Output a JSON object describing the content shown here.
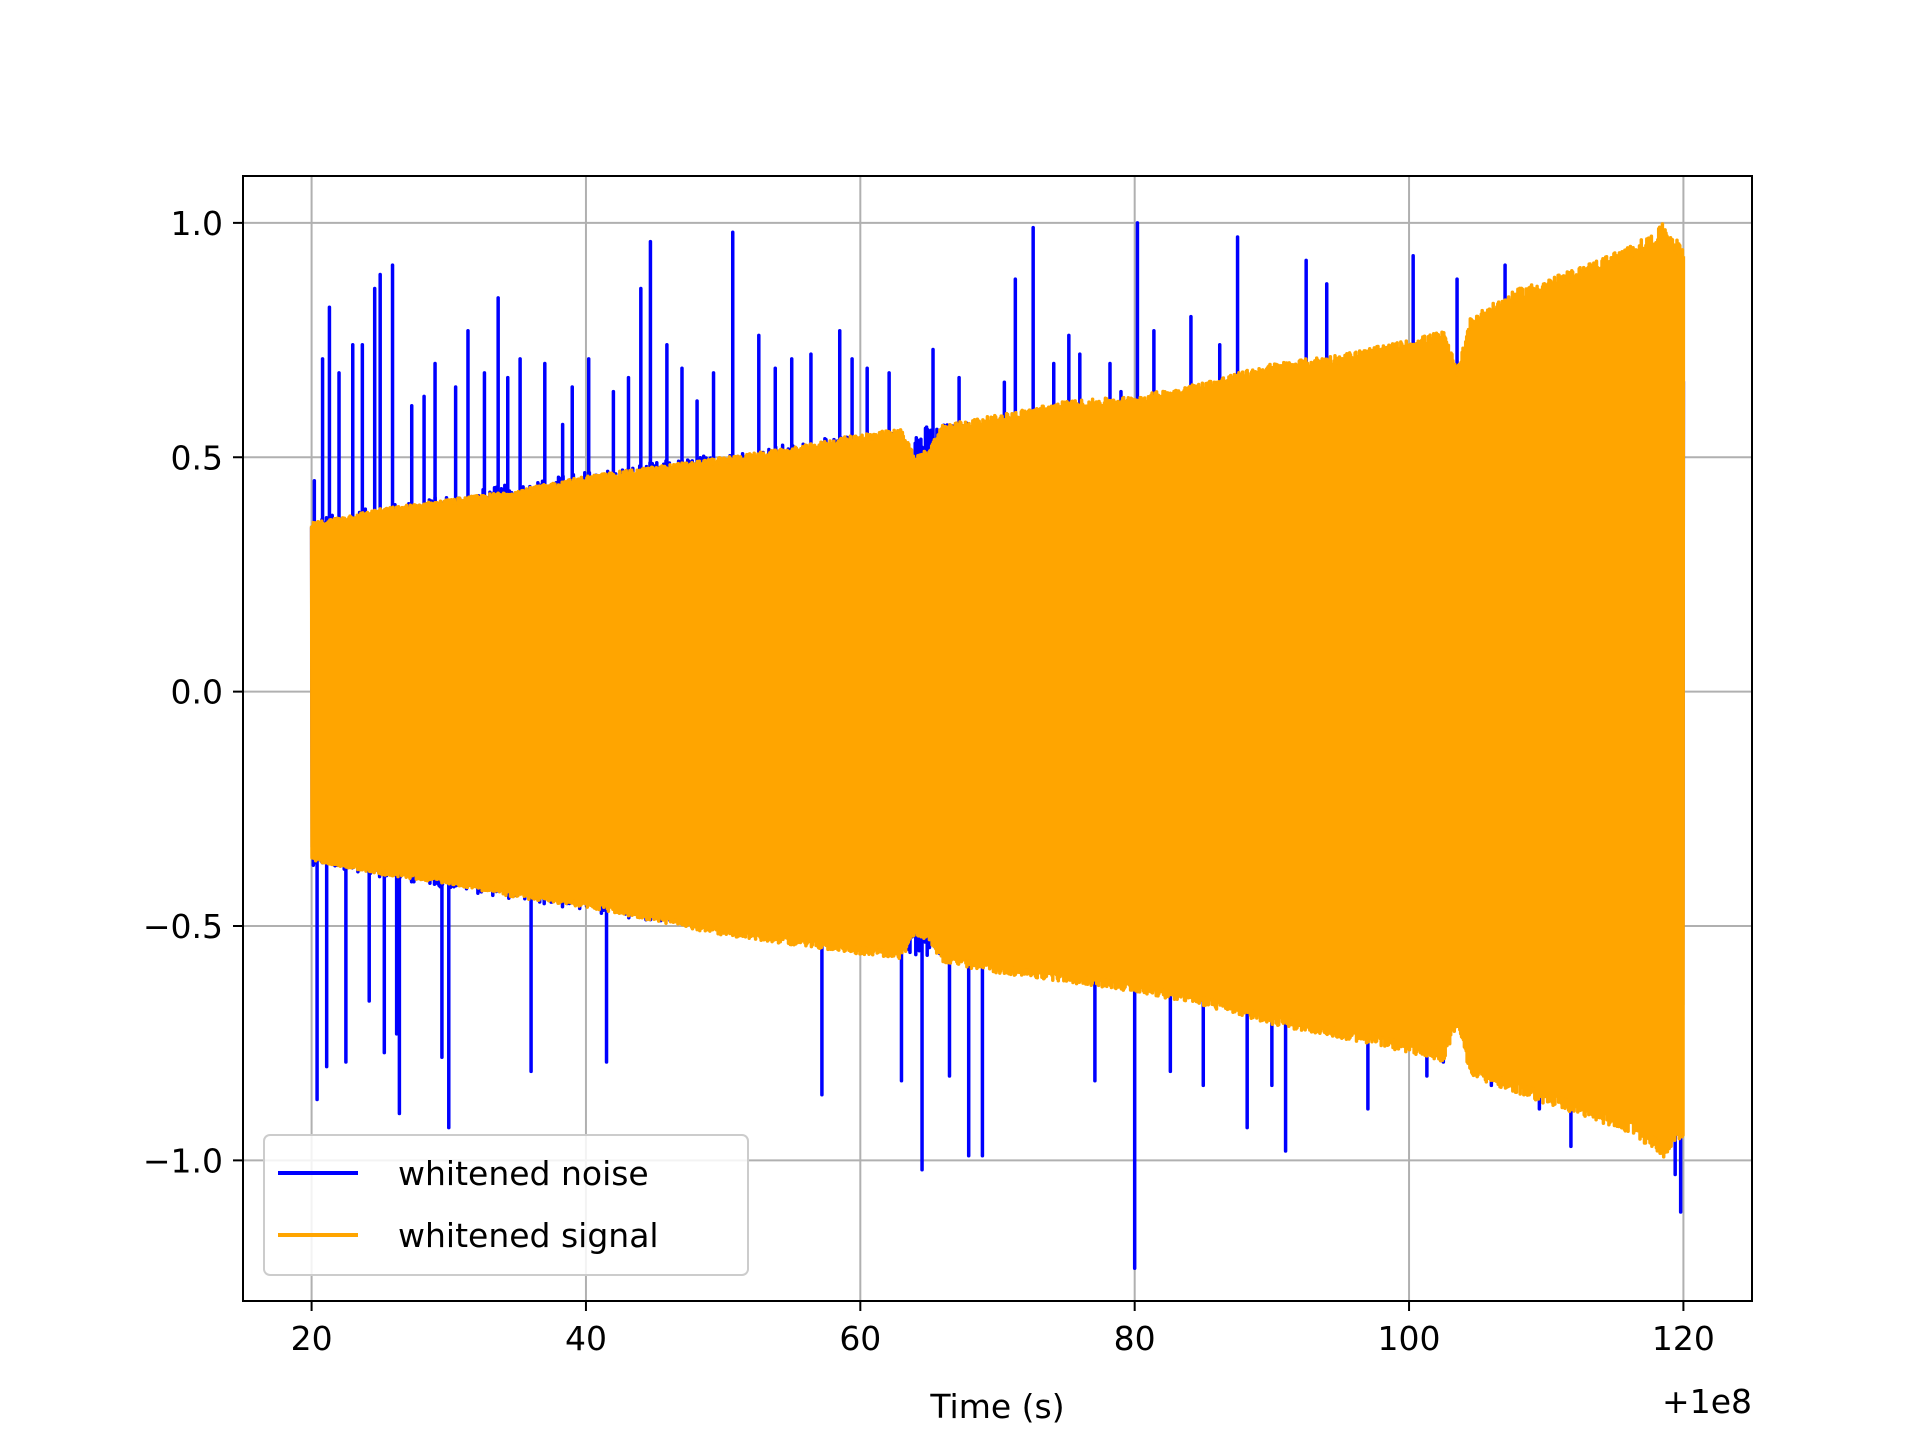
{
  "chart_data": {
    "type": "line",
    "title": "",
    "xlabel": "Time (s)",
    "ylabel": "",
    "x_offset_label": "+1e8",
    "xlim": [
      15,
      125
    ],
    "ylim": [
      -1.3,
      1.1
    ],
    "x_range_data": [
      20,
      120
    ],
    "xticks": [
      20,
      40,
      60,
      80,
      100,
      120
    ],
    "xtick_labels": [
      "20",
      "40",
      "60",
      "80",
      "100",
      "120"
    ],
    "yticks": [
      1.0,
      0.5,
      0.0,
      -0.5,
      -1.0
    ],
    "ytick_labels": [
      "1.0",
      "0.5",
      "0.0",
      "−0.5",
      "−1.0"
    ],
    "grid": true,
    "legend_position": "lower-left",
    "series": [
      {
        "name": "whitened noise",
        "color": "#0000ff",
        "description": "dense noise oscillation between about ±0.4 at start growing to about ±0.65; spikes reach about +1.0 and about -1.23 (at x≈80)",
        "envelope_top": [
          [
            20,
            0.37
          ],
          [
            40,
            0.47
          ],
          [
            60,
            0.55
          ],
          [
            80,
            0.62
          ],
          [
            100,
            0.66
          ],
          [
            120,
            0.68
          ]
        ],
        "envelope_bottom": [
          [
            20,
            -0.37
          ],
          [
            40,
            -0.47
          ],
          [
            60,
            -0.55
          ],
          [
            80,
            -0.62
          ],
          [
            100,
            -0.66
          ],
          [
            120,
            -0.68
          ]
        ],
        "spikes": [
          [
            20.2,
            0.45
          ],
          [
            20.4,
            -0.87
          ],
          [
            20.8,
            0.71
          ],
          [
            21.1,
            -0.8
          ],
          [
            21.3,
            0.82
          ],
          [
            22.0,
            0.68
          ],
          [
            22.5,
            -0.79
          ],
          [
            23.0,
            0.74
          ],
          [
            23.7,
            0.74
          ],
          [
            24.2,
            -0.66
          ],
          [
            24.6,
            0.86
          ],
          [
            25.0,
            0.89
          ],
          [
            25.3,
            -0.77
          ],
          [
            25.9,
            0.91
          ],
          [
            26.2,
            -0.73
          ],
          [
            26.4,
            -0.9
          ],
          [
            27.3,
            0.61
          ],
          [
            28.2,
            0.63
          ],
          [
            29.0,
            0.7
          ],
          [
            29.5,
            -0.78
          ],
          [
            30.0,
            -0.93
          ],
          [
            30.5,
            0.65
          ],
          [
            31.4,
            0.77
          ],
          [
            32.6,
            0.68
          ],
          [
            33.6,
            0.84
          ],
          [
            34.3,
            0.67
          ],
          [
            35.2,
            0.71
          ],
          [
            36.0,
            -0.81
          ],
          [
            37.0,
            0.7
          ],
          [
            38.3,
            0.57
          ],
          [
            39.0,
            0.65
          ],
          [
            40.2,
            0.71
          ],
          [
            41.5,
            -0.79
          ],
          [
            42.0,
            0.64
          ],
          [
            43.1,
            0.67
          ],
          [
            44.0,
            0.86
          ],
          [
            44.7,
            0.96
          ],
          [
            45.9,
            0.74
          ],
          [
            47.0,
            0.69
          ],
          [
            48.1,
            0.62
          ],
          [
            49.3,
            0.68
          ],
          [
            50.7,
            0.98
          ],
          [
            52.6,
            0.76
          ],
          [
            53.8,
            0.69
          ],
          [
            55.0,
            0.71
          ],
          [
            56.4,
            0.72
          ],
          [
            57.2,
            -0.86
          ],
          [
            58.5,
            0.77
          ],
          [
            59.4,
            0.71
          ],
          [
            60.5,
            0.69
          ],
          [
            62.1,
            0.68
          ],
          [
            63.0,
            -0.83
          ],
          [
            64.5,
            -1.02
          ],
          [
            65.3,
            0.73
          ],
          [
            66.5,
            -0.82
          ],
          [
            67.2,
            0.67
          ],
          [
            67.9,
            -0.99
          ],
          [
            68.9,
            -0.99
          ],
          [
            70.5,
            0.66
          ],
          [
            71.3,
            0.88
          ],
          [
            72.6,
            0.99
          ],
          [
            74.1,
            0.7
          ],
          [
            75.2,
            0.76
          ],
          [
            76.0,
            0.72
          ],
          [
            77.1,
            -0.83
          ],
          [
            78.2,
            0.7
          ],
          [
            79.0,
            0.64
          ],
          [
            80.0,
            -1.23
          ],
          [
            80.2,
            1.0
          ],
          [
            81.4,
            0.77
          ],
          [
            82.6,
            -0.81
          ],
          [
            84.1,
            0.8
          ],
          [
            85.0,
            -0.84
          ],
          [
            86.2,
            0.74
          ],
          [
            87.5,
            0.97
          ],
          [
            88.2,
            -0.93
          ],
          [
            90.0,
            -0.84
          ],
          [
            91.0,
            -0.98
          ],
          [
            92.5,
            0.92
          ],
          [
            94.0,
            0.87
          ],
          [
            95.6,
            0.71
          ],
          [
            97.0,
            -0.89
          ],
          [
            99.0,
            -0.74
          ],
          [
            100.3,
            0.93
          ],
          [
            101.3,
            -0.82
          ],
          [
            102.5,
            -0.79
          ],
          [
            103.5,
            0.88
          ],
          [
            104.6,
            0.72
          ],
          [
            106.0,
            -0.84
          ],
          [
            107.0,
            0.91
          ],
          [
            108.0,
            0.74
          ],
          [
            109.5,
            -0.89
          ],
          [
            110.5,
            0.8
          ],
          [
            111.8,
            -0.97
          ],
          [
            113.0,
            0.79
          ],
          [
            114.3,
            -0.86
          ],
          [
            115.4,
            0.84
          ],
          [
            116.5,
            -0.92
          ],
          [
            117.9,
            0.78
          ],
          [
            119.0,
            -0.96
          ],
          [
            119.4,
            -1.03
          ],
          [
            119.8,
            -1.11
          ]
        ]
      },
      {
        "name": "whitened signal",
        "color": "#ffa500",
        "description": "dense chirp-like oscillation with amplitude growing from about 0.36 at x=20 to about 0.95 at x=120, with small dips near x=64 and x=103",
        "envelope_top": [
          [
            20,
            0.36
          ],
          [
            25,
            0.39
          ],
          [
            30,
            0.41
          ],
          [
            35,
            0.43
          ],
          [
            40,
            0.46
          ],
          [
            45,
            0.48
          ],
          [
            50,
            0.5
          ],
          [
            55,
            0.52
          ],
          [
            60,
            0.55
          ],
          [
            63,
            0.56
          ],
          [
            64,
            0.5
          ],
          [
            65,
            0.52
          ],
          [
            66,
            0.57
          ],
          [
            70,
            0.59
          ],
          [
            75,
            0.62
          ],
          [
            80,
            0.63
          ],
          [
            85,
            0.66
          ],
          [
            90,
            0.7
          ],
          [
            95,
            0.72
          ],
          [
            100,
            0.75
          ],
          [
            102.5,
            0.77
          ],
          [
            103.5,
            0.69
          ],
          [
            104.5,
            0.8
          ],
          [
            108,
            0.86
          ],
          [
            112,
            0.9
          ],
          [
            116,
            0.95
          ],
          [
            118,
            0.98
          ],
          [
            118.5,
            1.0
          ],
          [
            119.3,
            0.97
          ],
          [
            120,
            0.95
          ]
        ],
        "envelope_bottom": [
          [
            20,
            -0.36
          ],
          [
            25,
            -0.39
          ],
          [
            30,
            -0.41
          ],
          [
            35,
            -0.44
          ],
          [
            40,
            -0.46
          ],
          [
            45,
            -0.49
          ],
          [
            50,
            -0.52
          ],
          [
            55,
            -0.54
          ],
          [
            60,
            -0.56
          ],
          [
            63,
            -0.57
          ],
          [
            64,
            -0.52
          ],
          [
            65,
            -0.53
          ],
          [
            66,
            -0.58
          ],
          [
            70,
            -0.6
          ],
          [
            75,
            -0.62
          ],
          [
            80,
            -0.64
          ],
          [
            85,
            -0.67
          ],
          [
            90,
            -0.71
          ],
          [
            95,
            -0.74
          ],
          [
            100,
            -0.77
          ],
          [
            102.5,
            -0.79
          ],
          [
            103.5,
            -0.71
          ],
          [
            104.5,
            -0.82
          ],
          [
            108,
            -0.86
          ],
          [
            112,
            -0.9
          ],
          [
            116,
            -0.94
          ],
          [
            118,
            -0.98
          ],
          [
            118.5,
            -1.0
          ],
          [
            119.3,
            -0.96
          ],
          [
            120,
            -0.95
          ]
        ]
      }
    ]
  }
}
